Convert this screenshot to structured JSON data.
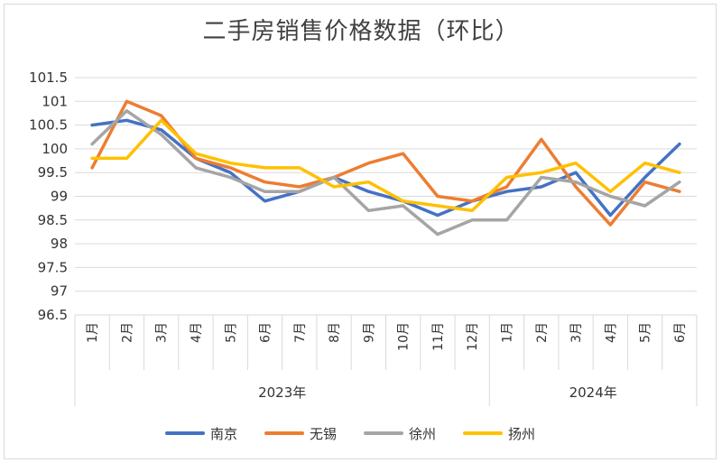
{
  "chart_data": {
    "type": "line",
    "title": "二手房销售价格数据（环比）",
    "categories": [
      "1月",
      "2月",
      "3月",
      "4月",
      "5月",
      "6月",
      "7月",
      "8月",
      "9月",
      "10月",
      "11月",
      "12月",
      "1月",
      "2月",
      "3月",
      "4月",
      "5月",
      "6月"
    ],
    "category_groups": [
      {
        "label": "2023年",
        "count": 12
      },
      {
        "label": "2024年",
        "count": 6
      }
    ],
    "ylim": [
      96.5,
      101.5
    ],
    "yticks": [
      "96.5",
      "97",
      "97.5",
      "98",
      "98.5",
      "99",
      "99.5",
      "100",
      "100.5",
      "101",
      "101.5"
    ],
    "grid": true,
    "legend_position": "bottom",
    "series": [
      {
        "name": "南京",
        "color": "#4472C4",
        "values": [
          100.5,
          100.6,
          100.4,
          99.8,
          99.5,
          98.9,
          99.1,
          99.4,
          99.1,
          98.9,
          98.6,
          98.9,
          99.1,
          99.2,
          99.5,
          98.6,
          99.4,
          100.1
        ]
      },
      {
        "name": "无锡",
        "color": "#ED7D31",
        "values": [
          99.6,
          101.0,
          100.7,
          99.8,
          99.6,
          99.3,
          99.2,
          99.4,
          99.7,
          99.9,
          99.0,
          98.9,
          99.2,
          100.2,
          99.2,
          98.4,
          99.3,
          99.1
        ]
      },
      {
        "name": "徐州",
        "color": "#A5A5A5",
        "values": [
          100.1,
          100.8,
          100.3,
          99.6,
          99.4,
          99.1,
          99.1,
          99.4,
          98.7,
          98.8,
          98.2,
          98.5,
          98.5,
          99.4,
          99.3,
          99.0,
          98.8,
          99.3
        ]
      },
      {
        "name": "扬州",
        "color": "#FFC000",
        "values": [
          99.8,
          99.8,
          100.6,
          99.9,
          99.7,
          99.6,
          99.6,
          99.2,
          99.3,
          98.9,
          98.8,
          98.7,
          99.4,
          99.5,
          99.7,
          99.1,
          99.7,
          99.5
        ]
      }
    ]
  }
}
